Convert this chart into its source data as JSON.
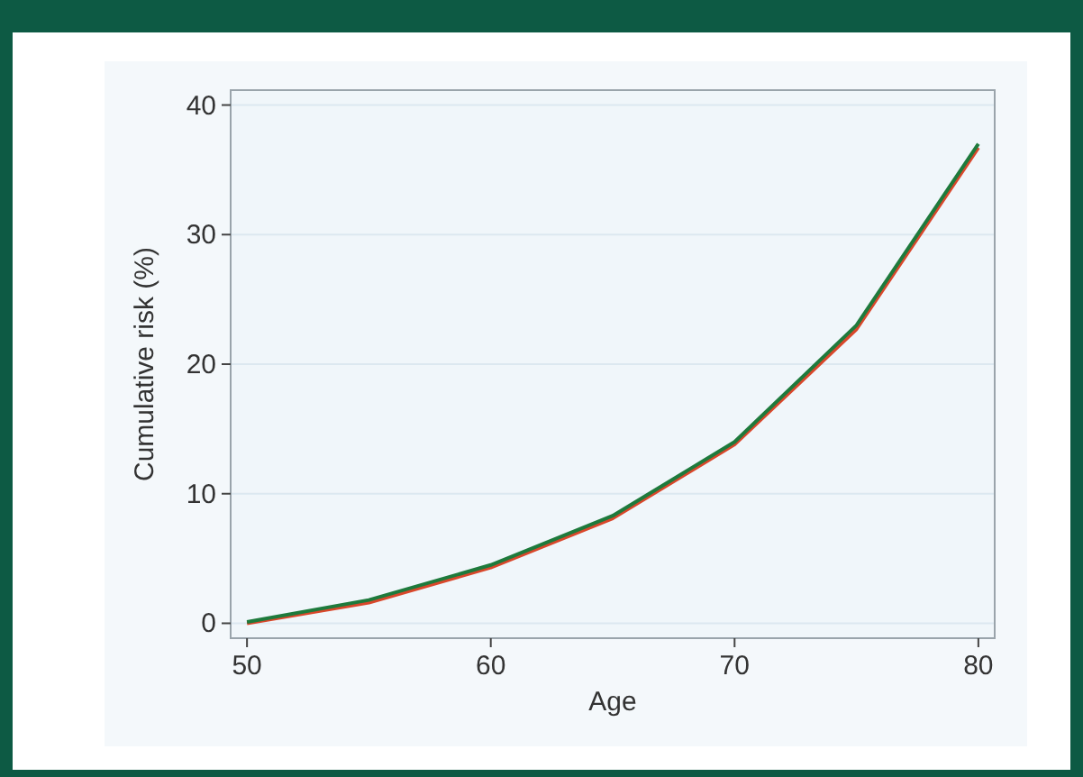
{
  "chart_data": {
    "type": "line",
    "xlabel": "Age",
    "ylabel": "Cumulative risk (%)",
    "x": [
      50,
      55,
      60,
      65,
      70,
      75,
      80
    ],
    "series": [
      {
        "color": "#d9472b",
        "values": [
          0,
          1.6,
          4.3,
          8.1,
          13.8,
          22.7,
          36.7
        ]
      },
      {
        "color": "#1e7a3c",
        "values": [
          0.1,
          1.8,
          4.5,
          8.3,
          14.0,
          23.0,
          37.0
        ]
      }
    ],
    "xlim": [
      49.33,
      80.67
    ],
    "xticks": [
      50,
      60,
      70,
      80
    ],
    "ylim": [
      -1.15,
      41.15
    ],
    "yticks": [
      0,
      10,
      20,
      30,
      40
    ],
    "grid": "y",
    "marker": "none",
    "line_style": "solid"
  }
}
